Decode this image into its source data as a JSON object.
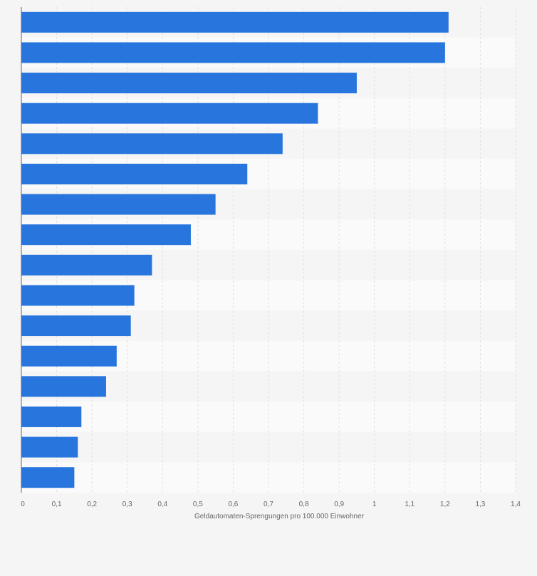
{
  "chart_data": {
    "type": "bar",
    "orientation": "horizontal",
    "title": "",
    "xlabel": "Geldautomaten-Sprengungen pro 100.000 Einwohner",
    "ylabel": "",
    "xlim": [
      0,
      1.4
    ],
    "x_ticks": [
      0,
      0.1,
      0.2,
      0.3,
      0.4,
      0.5,
      0.6,
      0.7,
      0.8,
      0.9,
      1,
      1.1,
      1.2,
      1.3,
      1.4
    ],
    "x_tick_labels": [
      "0",
      "0,1",
      "0,2",
      "0,3",
      "0,4",
      "0,5",
      "0,6",
      "0,7",
      "0,8",
      "0,9",
      "1",
      "1,1",
      "1,2",
      "1,3",
      "1,4"
    ],
    "values": [
      1.21,
      1.2,
      0.95,
      0.84,
      0.74,
      0.64,
      0.55,
      0.48,
      0.37,
      0.32,
      0.31,
      0.27,
      0.24,
      0.17,
      0.16,
      0.15
    ],
    "grid": true,
    "bar_color": "#2876dd",
    "band_colors": [
      "#f5f5f5",
      "#fafafa"
    ],
    "grid_color": "#e0e0e0",
    "axis_color": "#666666"
  }
}
